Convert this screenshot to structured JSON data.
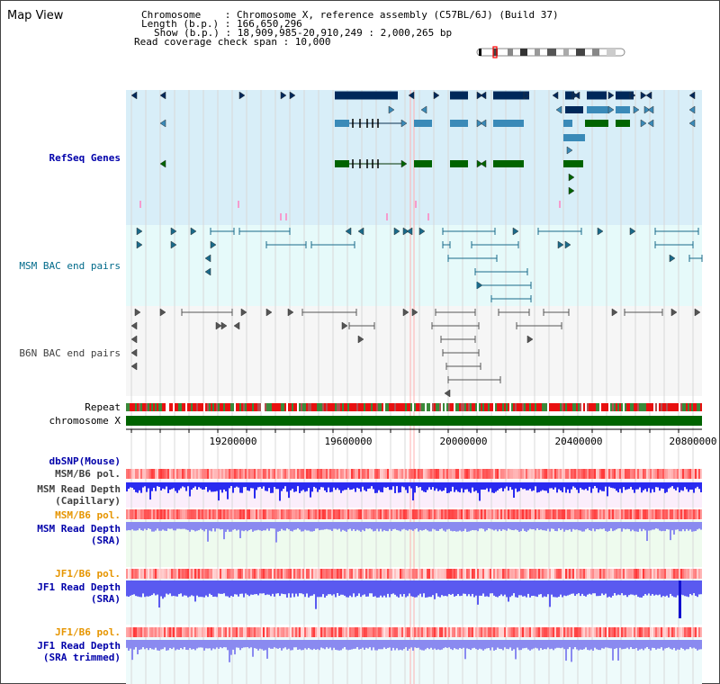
{
  "page_title": "Map View",
  "info": {
    "chromosome_label": "Chromosome    : Chromosome X, reference assembly (C57BL/6J) (Build 37)",
    "length_label": "Length (b.p.) : 166,650,296",
    "show_label": "Show (b.p.) : 18,909,985-20,910,249 : 2,000,265 bp",
    "coverage_label": "Read coverage check span : 10,000"
  },
  "tracks": {
    "refseq": "RefSeq Genes",
    "msm_bac": "MSM BAC end pairs",
    "b6n_bac": "B6N BAC end pairs",
    "repeat": "Repeat",
    "chromosome": "chromosome X",
    "dbsnp": "dbSNP(Mouse)",
    "msm_b6_pol_1": "MSM/B6 pol.",
    "msm_depth_cap_1": "MSM Read Depth",
    "msm_depth_cap_2": "(Capillary)",
    "msm_b6_pol_2": "MSM/B6 pol.",
    "msm_depth_sra_1": "MSM Read Depth",
    "msm_depth_sra_2": "(SRA)",
    "jf1_b6_pol_1": "JF1/B6 pol.",
    "jf1_depth_sra_1": "JF1 Read Depth",
    "jf1_depth_sra_2": "(SRA)",
    "jf1_b6_pol_2": "JF1/B6 pol.",
    "jf1_depth_trim_1": "JF1 Read Depth",
    "jf1_depth_trim_2": "(SRA trimmed)"
  },
  "axis": {
    "ticks": [
      "19200000",
      "19600000",
      "20000000",
      "20400000",
      "20800000"
    ]
  },
  "colors": {
    "refseq_bg": "#d8eef8",
    "msm_bg": "#e6fafa",
    "b6n_bg": "#f4f4f4",
    "gene_navy": "#00285a",
    "gene_blue": "#3a8ab8",
    "gene_green": "#006400",
    "chromosome_bar": "#006400",
    "depth_blue": "#2a2af0",
    "depth_light": "#8a8af0"
  }
}
